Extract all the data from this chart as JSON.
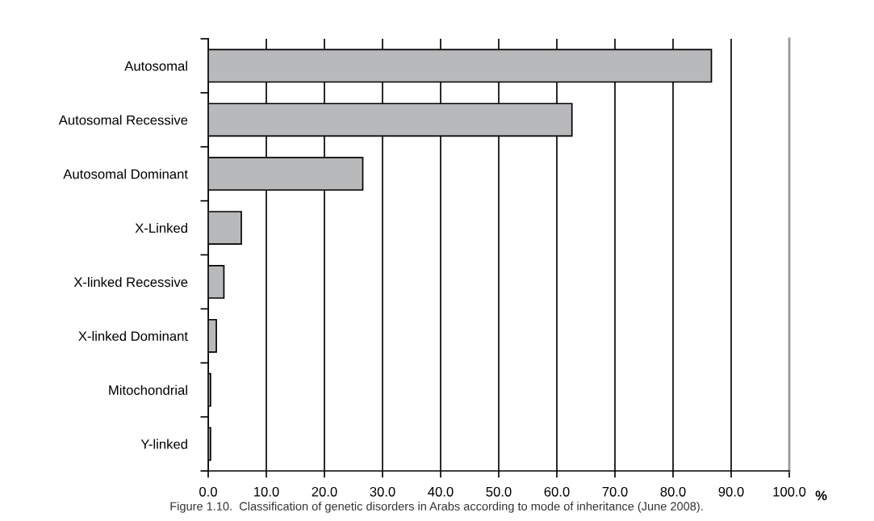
{
  "chart_data": {
    "type": "bar",
    "orientation": "horizontal",
    "xlabel": "%",
    "categories": [
      "Autosomal",
      "Autosomal Recessive",
      "Autosomal Dominant",
      "X-Linked",
      "X-linked Recessive",
      "X-linked Dominant",
      "Mitochondrial",
      "Y-linked"
    ],
    "values": [
      86.6,
      62.6,
      26.6,
      5.7,
      2.7,
      1.4,
      0.4,
      0.4
    ],
    "color": "#b8b9bb",
    "xlim": [
      0,
      100
    ],
    "xticks": [
      {
        "value": 0,
        "label": "0.0"
      },
      {
        "value": 10,
        "label": "10.0"
      },
      {
        "value": 20,
        "label": "20.0"
      },
      {
        "value": 30,
        "label": "30.0"
      },
      {
        "value": 40,
        "label": "40.0"
      },
      {
        "value": 50,
        "label": "50.0"
      },
      {
        "value": 60,
        "label": "60.0"
      },
      {
        "value": 70,
        "label": "70.0"
      },
      {
        "value": 80,
        "label": "80.0"
      },
      {
        "value": 90,
        "label": "90.0"
      },
      {
        "value": 100,
        "label": "100.0"
      }
    ],
    "grid": "x",
    "annotations": [
      "Figure 1.10.  Classification of genetic disorders in Arabs according to mode of inheritance (June 2008)."
    ]
  }
}
